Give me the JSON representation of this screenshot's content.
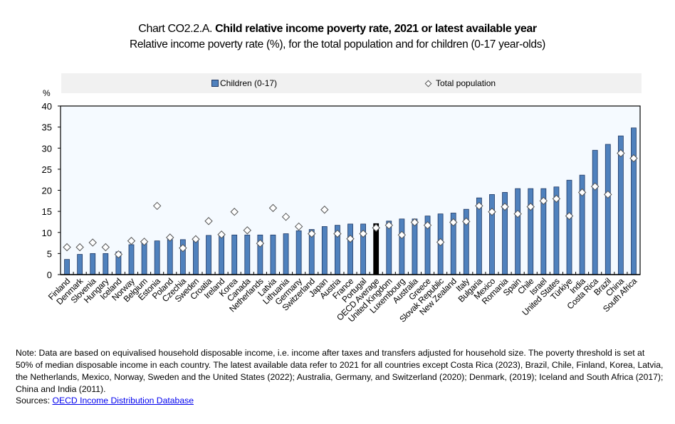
{
  "header": {
    "title_prefix": "Chart CO2.2.A.",
    "title_bold": "Child relative income poverty rate, 2021 or latest available year",
    "subtitle": "Relative income poverty rate (%), for the total population and for children (0-17 year-olds)"
  },
  "footer": {
    "note": "Note: Data are based on equivalised household disposable income, i.e. income after taxes and transfers adjusted for household size. The poverty threshold is set at 50% of median disposable income in each country. The latest available data refer to 2021 for all countries except Costa Rica (2023), Brazil, Chile, Finland, Korea, Latvia, the Netherlands, Mexico, Norway, Sweden and the United States (2022); Australia, Germany, and Switzerland (2020); Denmark, (2019); Iceland and South Africa (2017); China and India (2011).",
    "sources_label": "Sources:",
    "sources_link": "OECD Income Distribution Database"
  },
  "colors": {
    "bar": "#4f81bd",
    "bar_border": "#1f3864",
    "highlight_bar": "#000000",
    "plot_bg": "#f5faff",
    "legend_bg": "#f1f1f1"
  },
  "chart_data": {
    "type": "bar",
    "title": "Child relative income poverty rate, 2021 or latest available year",
    "subtitle": "Relative income poverty rate (%), for the total population and for children (0-17 year-olds)",
    "xlabel": "",
    "ylabel": "%",
    "ylim": [
      0,
      40
    ],
    "yticks": [
      0,
      5,
      10,
      15,
      20,
      25,
      30,
      35,
      40
    ],
    "grid": false,
    "legend_position": "top",
    "highlight_category": "OECD Average",
    "categories": [
      "Finland",
      "Denmark",
      "Slovenia",
      "Hungary",
      "Iceland",
      "Norway",
      "Belgium",
      "Estonia",
      "Poland",
      "Czechia",
      "Sweden",
      "Croatia",
      "Ireland",
      "Korea",
      "Canada",
      "Netherlands",
      "Latvia",
      "Lithuania",
      "Germany",
      "Switzerland",
      "Japan",
      "Austria",
      "France",
      "Portugal",
      "OECD Average",
      "United Kingdom",
      "Luxembourg",
      "Australia",
      "Greece",
      "Slovak Republic",
      "New Zealand",
      "Italy",
      "Bulgaria",
      "Mexico",
      "Romania",
      "Spain",
      "Chile",
      "Israel",
      "United States",
      "Türkiye",
      "India",
      "Costa Rica",
      "Brazil",
      "China",
      "South Africa"
    ],
    "series": [
      {
        "name": "Children (0-17)",
        "type": "bar",
        "values": [
          3.6,
          4.8,
          5.0,
          5.0,
          5.4,
          7.1,
          7.7,
          8.0,
          8.3,
          8.3,
          8.3,
          9.3,
          9.4,
          9.4,
          9.4,
          9.4,
          9.4,
          9.7,
          10.4,
          10.7,
          11.4,
          11.7,
          12.0,
          12.0,
          12.1,
          12.7,
          13.2,
          13.2,
          13.9,
          14.4,
          14.6,
          15.5,
          18.2,
          19.0,
          19.5,
          20.4,
          20.4,
          20.4,
          20.8,
          22.4,
          23.6,
          29.5,
          30.9,
          32.9,
          34.8
        ]
      },
      {
        "name": "Total population",
        "type": "scatter",
        "marker": "diamond",
        "values": [
          6.5,
          6.5,
          7.6,
          6.5,
          4.8,
          8.0,
          7.8,
          16.3,
          8.8,
          6.3,
          8.4,
          12.7,
          9.5,
          14.9,
          10.5,
          7.4,
          15.8,
          13.7,
          11.4,
          9.7,
          15.4,
          9.7,
          8.5,
          9.7,
          11.1,
          11.7,
          9.4,
          12.4,
          11.7,
          7.7,
          12.4,
          12.6,
          16.3,
          14.9,
          16.1,
          14.4,
          16.1,
          17.5,
          18.0,
          13.9,
          19.5,
          20.9,
          19.0,
          28.8,
          27.6
        ]
      }
    ]
  }
}
